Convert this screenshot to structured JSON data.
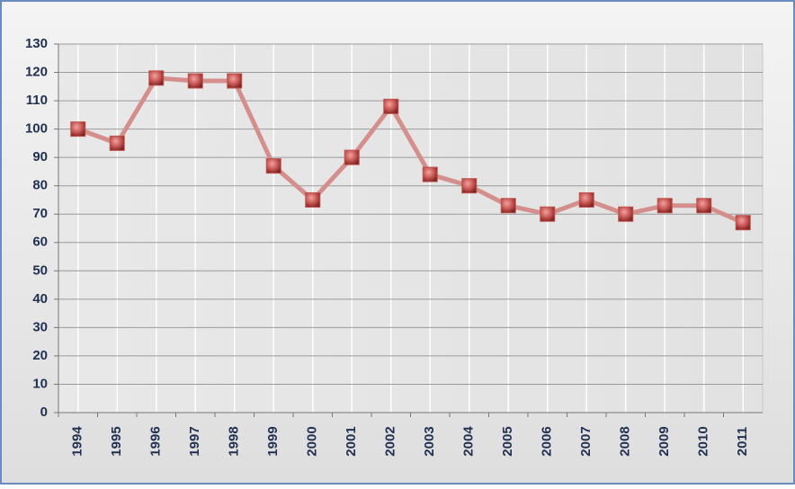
{
  "chart_data": {
    "type": "line",
    "categories": [
      "1994",
      "1995",
      "1996",
      "1997",
      "1998",
      "1999",
      "2000",
      "2001",
      "2002",
      "2003",
      "2004",
      "2005",
      "2006",
      "2007",
      "2008",
      "2009",
      "2010",
      "2011"
    ],
    "series": [
      {
        "color": "#d48f8d",
        "marker_color": "#c0504d",
        "values": [
          100,
          95,
          118,
          117,
          117,
          87,
          75,
          90,
          108,
          84,
          80,
          73,
          70,
          75,
          70,
          73,
          73,
          67
        ]
      }
    ],
    "ylim": [
      0,
      130
    ],
    "yticks": [
      0,
      10,
      20,
      30,
      40,
      50,
      60,
      70,
      80,
      90,
      100,
      110,
      120,
      130
    ],
    "grid": true
  }
}
